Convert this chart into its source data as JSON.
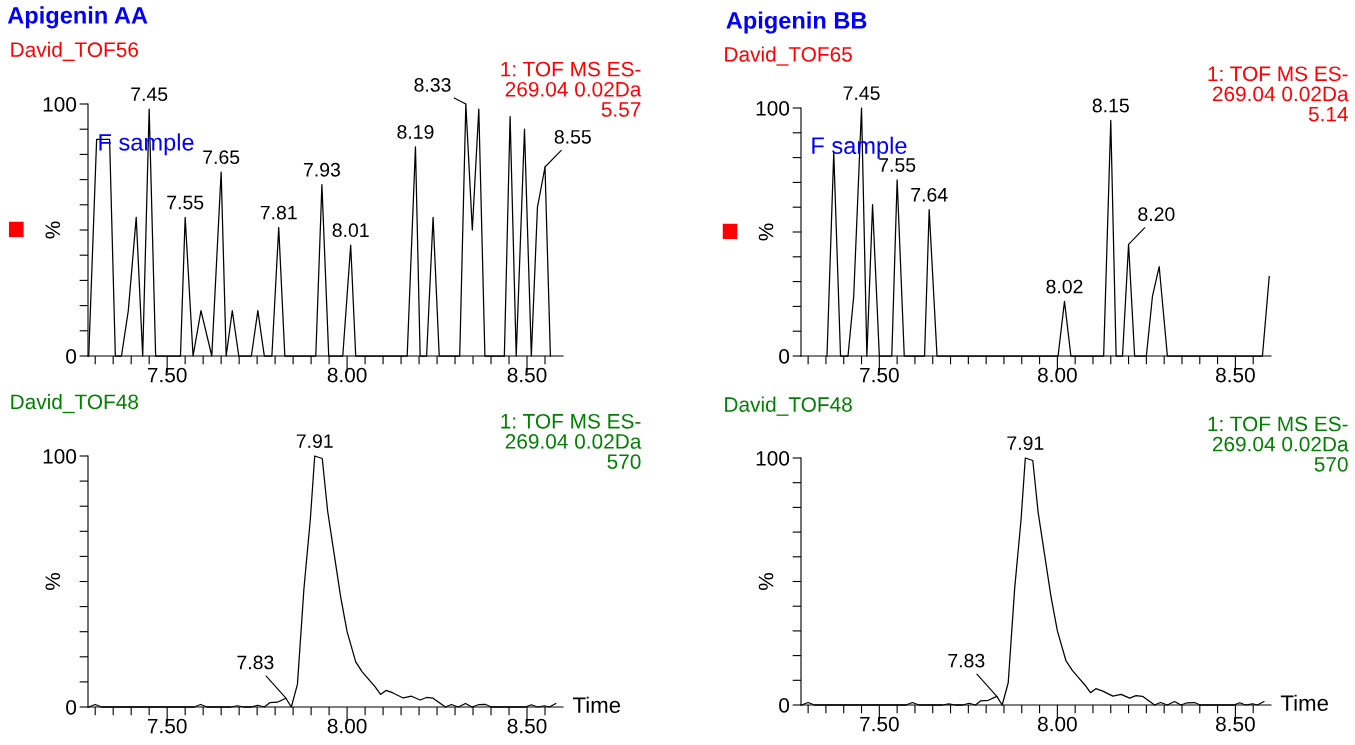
{
  "chart_data": [
    {
      "type": "line",
      "title": "Apigenin AA",
      "ylabel": "%",
      "annotations": [
        "David_TOF56",
        "1: TOF MS ES-\n269.04 0.02Da\n5.57",
        "F sample",
        {
          "text": "7.45",
          "x": 7.45,
          "y": 98
        },
        {
          "text": "7.55",
          "x": 7.55,
          "y": 55
        },
        {
          "text": "7.65",
          "x": 7.65,
          "y": 73
        },
        {
          "text": "7.81",
          "x": 7.81,
          "y": 51
        },
        {
          "text": "7.93",
          "x": 7.93,
          "y": 68
        },
        {
          "text": "8.01",
          "x": 8.01,
          "y": 44
        },
        {
          "text": "8.19",
          "x": 8.19,
          "y": 83
        },
        {
          "text": "8.33",
          "x": 8.33,
          "y": 100
        },
        {
          "text": "8.55",
          "x": 8.55,
          "y": 75
        }
      ],
      "series": [
        {
          "color": "#000000",
          "x": [
            7.282,
            7.304,
            7.34,
            7.356,
            7.373,
            7.392,
            7.414,
            7.432,
            7.45,
            7.468,
            7.537,
            7.55,
            7.572,
            7.594,
            7.624,
            7.65,
            7.664,
            7.681,
            7.699,
            7.734,
            7.752,
            7.77,
            7.791,
            7.81,
            7.827,
            7.913,
            7.93,
            7.949,
            7.988,
            8.01,
            8.024,
            8.167,
            8.19,
            8.203,
            8.221,
            8.239,
            8.256,
            8.313,
            8.33,
            8.348,
            8.366,
            8.383,
            8.437,
            8.453,
            8.47,
            8.493,
            8.512,
            8.529,
            8.55,
            8.565
          ],
          "values": [
            0,
            86,
            86,
            0,
            0,
            18,
            55,
            0,
            98,
            0,
            0,
            55,
            0,
            18,
            0,
            73,
            0,
            18,
            0,
            0,
            18,
            0,
            0,
            51,
            0,
            0,
            68,
            0,
            0,
            44,
            0,
            0,
            83,
            0,
            0,
            55,
            0,
            0,
            100,
            50,
            98,
            0,
            0,
            95,
            0,
            90,
            0,
            59,
            75,
            0
          ]
        }
      ],
      "xlim": [
        7.28,
        8.6
      ],
      "ylim": [
        0,
        100
      ],
      "xticks": [
        {
          "value": 7.3,
          "label": null
        },
        {
          "value": 7.35,
          "label": null
        },
        {
          "value": 7.4,
          "label": null
        },
        {
          "value": 7.45,
          "label": null
        },
        {
          "value": 7.5,
          "label": "7.50"
        },
        {
          "value": 7.55,
          "label": null
        },
        {
          "value": 7.6,
          "label": null
        },
        {
          "value": 7.65,
          "label": null
        },
        {
          "value": 7.7,
          "label": null
        },
        {
          "value": 7.75,
          "label": null
        },
        {
          "value": 7.8,
          "label": null
        },
        {
          "value": 7.85,
          "label": null
        },
        {
          "value": 7.9,
          "label": null
        },
        {
          "value": 7.95,
          "label": null
        },
        {
          "value": 8.0,
          "label": "8.00"
        },
        {
          "value": 8.05,
          "label": null
        },
        {
          "value": 8.1,
          "label": null
        },
        {
          "value": 8.15,
          "label": null
        },
        {
          "value": 8.2,
          "label": null
        },
        {
          "value": 8.25,
          "label": null
        },
        {
          "value": 8.3,
          "label": null
        },
        {
          "value": 8.35,
          "label": null
        },
        {
          "value": 8.4,
          "label": null
        },
        {
          "value": 8.45,
          "label": null
        },
        {
          "value": 8.5,
          "label": "8.50"
        },
        {
          "value": 8.55,
          "label": null
        }
      ],
      "yticks": [
        0,
        {
          "value": 10,
          "label": null
        },
        {
          "value": 20,
          "label": null
        },
        {
          "value": 30,
          "label": null
        },
        {
          "value": 40,
          "label": null
        },
        {
          "value": 50,
          "label": null
        },
        {
          "value": 60,
          "label": null
        },
        {
          "value": 70,
          "label": null
        },
        {
          "value": 80,
          "label": null
        },
        {
          "value": 90,
          "label": null
        },
        100
      ]
    },
    {
      "type": "line",
      "title": "Apigenin BB",
      "ylabel": "%",
      "annotations": [
        "David_TOF65",
        "1: TOF MS ES-\n269.04 0.02Da\n5.14",
        "F sample",
        {
          "text": "7.45",
          "x": 7.45,
          "y": 100
        },
        {
          "text": "7.55",
          "x": 7.55,
          "y": 71
        },
        {
          "text": "7.64",
          "x": 7.64,
          "y": 59
        },
        {
          "text": "8.02",
          "x": 8.02,
          "y": 22
        },
        {
          "text": "8.15",
          "x": 8.15,
          "y": 95
        },
        {
          "text": "8.20",
          "x": 8.2,
          "y": 45
        }
      ],
      "series": [
        {
          "color": "#000000",
          "x": [
            7.353,
            7.372,
            7.391,
            7.412,
            7.428,
            7.45,
            7.465,
            7.481,
            7.5,
            7.535,
            7.55,
            7.57,
            7.627,
            7.64,
            7.662,
            8.002,
            8.02,
            8.038,
            8.13,
            8.15,
            8.165,
            8.183,
            8.2,
            8.217,
            8.25,
            8.267,
            8.286,
            8.309,
            8.576,
            8.595
          ],
          "values": [
            0,
            82,
            0,
            0,
            24,
            100,
            0,
            61,
            0,
            0,
            71,
            0,
            0,
            59,
            0,
            0,
            22,
            0,
            0,
            95,
            0,
            0,
            45,
            0,
            0,
            24,
            36,
            0,
            0,
            32
          ]
        }
      ],
      "xlim": [
        7.28,
        8.6
      ],
      "ylim": [
        0,
        100
      ],
      "xticks": [
        {
          "value": 7.3,
          "label": null
        },
        {
          "value": 7.35,
          "label": null
        },
        {
          "value": 7.4,
          "label": null
        },
        {
          "value": 7.45,
          "label": null
        },
        {
          "value": 7.5,
          "label": "7.50"
        },
        {
          "value": 7.55,
          "label": null
        },
        {
          "value": 7.6,
          "label": null
        },
        {
          "value": 7.65,
          "label": null
        },
        {
          "value": 7.7,
          "label": null
        },
        {
          "value": 7.75,
          "label": null
        },
        {
          "value": 7.8,
          "label": null
        },
        {
          "value": 7.85,
          "label": null
        },
        {
          "value": 7.9,
          "label": null
        },
        {
          "value": 7.95,
          "label": null
        },
        {
          "value": 8.0,
          "label": "8.00"
        },
        {
          "value": 8.05,
          "label": null
        },
        {
          "value": 8.1,
          "label": null
        },
        {
          "value": 8.15,
          "label": null
        },
        {
          "value": 8.2,
          "label": null
        },
        {
          "value": 8.25,
          "label": null
        },
        {
          "value": 8.3,
          "label": null
        },
        {
          "value": 8.35,
          "label": null
        },
        {
          "value": 8.4,
          "label": null
        },
        {
          "value": 8.45,
          "label": null
        },
        {
          "value": 8.5,
          "label": "8.50"
        },
        {
          "value": 8.55,
          "label": null
        }
      ],
      "yticks": [
        0,
        {
          "value": 10,
          "label": null
        },
        {
          "value": 20,
          "label": null
        },
        {
          "value": 30,
          "label": null
        },
        {
          "value": 40,
          "label": null
        },
        {
          "value": 50,
          "label": null
        },
        {
          "value": 60,
          "label": null
        },
        {
          "value": 70,
          "label": null
        },
        {
          "value": 80,
          "label": null
        },
        {
          "value": 90,
          "label": null
        },
        100
      ]
    },
    {
      "type": "line",
      "ylabel": "%",
      "xlabel": "Time",
      "annotations": [
        "David_TOF48",
        "1: TOF MS ES-\n269.04 0.02Da\n570",
        {
          "text": "7.91",
          "x": 7.91,
          "y": 100
        },
        {
          "text": "7.83",
          "x": 7.83,
          "y": 3.5
        }
      ],
      "series": [
        {
          "color": "#000000",
          "x": [
            7.282,
            7.3,
            7.318,
            7.575,
            7.593,
            7.611,
            7.677,
            7.695,
            7.713,
            7.734,
            7.752,
            7.77,
            7.785,
            7.806,
            7.83,
            7.845,
            7.862,
            7.88,
            7.898,
            7.91,
            7.931,
            7.946,
            7.964,
            7.982,
            8.0,
            8.024,
            8.042,
            8.06,
            8.078,
            8.093,
            8.108,
            8.126,
            8.156,
            8.179,
            8.203,
            8.221,
            8.239,
            8.273,
            8.29,
            8.309,
            8.329,
            8.347,
            8.365,
            8.385,
            8.401,
            8.496,
            8.512,
            8.529,
            8.548,
            8.562,
            8.58
          ],
          "values": [
            0,
            1,
            0,
            0,
            1,
            0,
            0,
            0.5,
            0,
            0,
            0.7,
            0,
            1.7,
            1.9,
            3.5,
            0,
            9,
            47,
            75,
            100,
            99,
            78,
            61,
            44,
            30,
            18,
            14,
            11,
            8,
            5,
            6.6,
            5.7,
            3.6,
            4.3,
            2.8,
            3.8,
            3.5,
            0,
            1,
            0,
            1.4,
            0,
            0.9,
            1,
            0,
            0,
            0.9,
            0,
            0.5,
            0,
            1.4
          ]
        }
      ],
      "xlim": [
        7.28,
        8.6
      ],
      "ylim": [
        0,
        100
      ],
      "xticks": [
        {
          "value": 7.3,
          "label": null
        },
        {
          "value": 7.35,
          "label": null
        },
        {
          "value": 7.4,
          "label": null
        },
        {
          "value": 7.45,
          "label": null
        },
        {
          "value": 7.5,
          "label": "7.50"
        },
        {
          "value": 7.55,
          "label": null
        },
        {
          "value": 7.6,
          "label": null
        },
        {
          "value": 7.65,
          "label": null
        },
        {
          "value": 7.7,
          "label": null
        },
        {
          "value": 7.75,
          "label": null
        },
        {
          "value": 7.8,
          "label": null
        },
        {
          "value": 7.85,
          "label": null
        },
        {
          "value": 7.9,
          "label": null
        },
        {
          "value": 7.95,
          "label": null
        },
        {
          "value": 8.0,
          "label": "8.00"
        },
        {
          "value": 8.05,
          "label": null
        },
        {
          "value": 8.1,
          "label": null
        },
        {
          "value": 8.15,
          "label": null
        },
        {
          "value": 8.2,
          "label": null
        },
        {
          "value": 8.25,
          "label": null
        },
        {
          "value": 8.3,
          "label": null
        },
        {
          "value": 8.35,
          "label": null
        },
        {
          "value": 8.4,
          "label": null
        },
        {
          "value": 8.45,
          "label": null
        },
        {
          "value": 8.5,
          "label": "8.50"
        },
        {
          "value": 8.55,
          "label": null
        }
      ],
      "yticks": [
        0,
        {
          "value": 10,
          "label": null
        },
        {
          "value": 20,
          "label": null
        },
        {
          "value": 30,
          "label": null
        },
        {
          "value": 40,
          "label": null
        },
        {
          "value": 50,
          "label": null
        },
        {
          "value": 60,
          "label": null
        },
        {
          "value": 70,
          "label": null
        },
        {
          "value": 80,
          "label": null
        },
        {
          "value": 90,
          "label": null
        },
        100
      ]
    },
    {
      "type": "line",
      "ylabel": "%",
      "xlabel": "Time",
      "annotations": [
        "David_TOF48",
        "1: TOF MS ES-\n269.04 0.02Da\n570",
        {
          "text": "7.91",
          "x": 7.91,
          "y": 100
        },
        {
          "text": "7.83",
          "x": 7.83,
          "y": 3.5
        }
      ],
      "series": [
        {
          "color": "#000000",
          "x": [
            7.282,
            7.3,
            7.318,
            7.575,
            7.593,
            7.611,
            7.677,
            7.695,
            7.713,
            7.734,
            7.752,
            7.77,
            7.785,
            7.806,
            7.83,
            7.845,
            7.862,
            7.88,
            7.898,
            7.91,
            7.931,
            7.946,
            7.964,
            7.982,
            8.0,
            8.024,
            8.042,
            8.06,
            8.078,
            8.093,
            8.108,
            8.126,
            8.156,
            8.179,
            8.203,
            8.221,
            8.239,
            8.273,
            8.29,
            8.309,
            8.329,
            8.347,
            8.365,
            8.385,
            8.401,
            8.496,
            8.512,
            8.529,
            8.548,
            8.562,
            8.58
          ],
          "values": [
            0,
            1,
            0,
            0,
            1,
            0,
            0,
            0.5,
            0,
            0,
            0.7,
            0,
            1.7,
            1.9,
            3.5,
            0,
            9,
            47,
            75,
            100,
            99,
            78,
            61,
            44,
            30,
            18,
            14,
            11,
            8,
            5,
            6.6,
            5.7,
            3.6,
            4.3,
            2.8,
            3.8,
            3.5,
            0,
            1,
            0,
            1.4,
            0,
            0.9,
            1,
            0,
            0,
            0.9,
            0,
            0.5,
            0,
            1.4
          ]
        }
      ],
      "xlim": [
        7.28,
        8.6
      ],
      "ylim": [
        0,
        100
      ],
      "xticks": [
        {
          "value": 7.3,
          "label": null
        },
        {
          "value": 7.35,
          "label": null
        },
        {
          "value": 7.4,
          "label": null
        },
        {
          "value": 7.45,
          "label": null
        },
        {
          "value": 7.5,
          "label": "7.50"
        },
        {
          "value": 7.55,
          "label": null
        },
        {
          "value": 7.6,
          "label": null
        },
        {
          "value": 7.65,
          "label": null
        },
        {
          "value": 7.7,
          "label": null
        },
        {
          "value": 7.75,
          "label": null
        },
        {
          "value": 7.8,
          "label": null
        },
        {
          "value": 7.85,
          "label": null
        },
        {
          "value": 7.9,
          "label": null
        },
        {
          "value": 7.95,
          "label": null
        },
        {
          "value": 8.0,
          "label": "8.00"
        },
        {
          "value": 8.05,
          "label": null
        },
        {
          "value": 8.1,
          "label": null
        },
        {
          "value": 8.15,
          "label": null
        },
        {
          "value": 8.2,
          "label": null
        },
        {
          "value": 8.25,
          "label": null
        },
        {
          "value": 8.3,
          "label": null
        },
        {
          "value": 8.35,
          "label": null
        },
        {
          "value": 8.4,
          "label": null
        },
        {
          "value": 8.45,
          "label": null
        },
        {
          "value": 8.5,
          "label": "8.50"
        },
        {
          "value": 8.55,
          "label": null
        }
      ],
      "yticks": [
        0,
        {
          "value": 10,
          "label": null
        },
        {
          "value": 20,
          "label": null
        },
        {
          "value": 30,
          "label": null
        },
        {
          "value": 40,
          "label": null
        },
        {
          "value": 50,
          "label": null
        },
        {
          "value": 60,
          "label": null
        },
        {
          "value": 70,
          "label": null
        },
        {
          "value": 80,
          "label": null
        },
        {
          "value": 90,
          "label": null
        },
        100
      ]
    }
  ]
}
